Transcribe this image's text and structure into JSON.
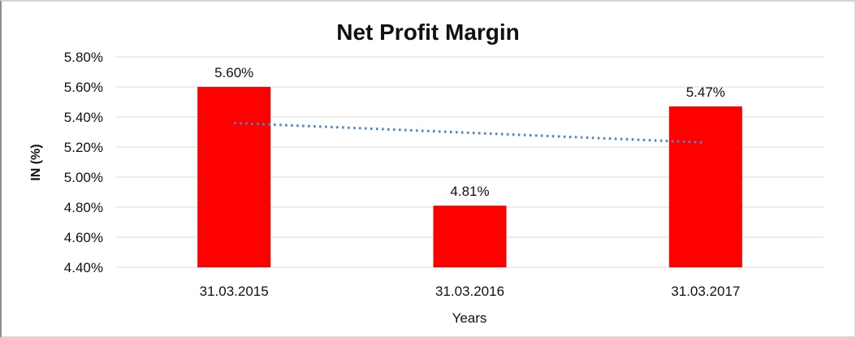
{
  "chart_data": {
    "type": "bar",
    "title": "Net Profit Margin",
    "xlabel": "Years",
    "ylabel": "IN (%)",
    "categories": [
      "31.03.2015",
      "31.03.2016",
      "31.03.2017"
    ],
    "values": [
      5.6,
      4.81,
      5.47
    ],
    "data_labels": [
      "5.60%",
      "4.81%",
      "5.47%"
    ],
    "ylim": [
      4.4,
      5.8
    ],
    "ytick_step": 0.2,
    "ytick_labels": [
      "4.40%",
      "4.60%",
      "4.80%",
      "5.00%",
      "5.20%",
      "5.40%",
      "5.60%",
      "5.80%"
    ],
    "grid": true,
    "legend_position": "none",
    "bar_color": "#ff0000",
    "gridline_color": "#d9d9d9",
    "text_color": "#111111",
    "trendline": {
      "type": "linear",
      "style": "dotted",
      "color": "#4d86c4",
      "start_value": 5.36,
      "end_value": 5.23
    }
  }
}
